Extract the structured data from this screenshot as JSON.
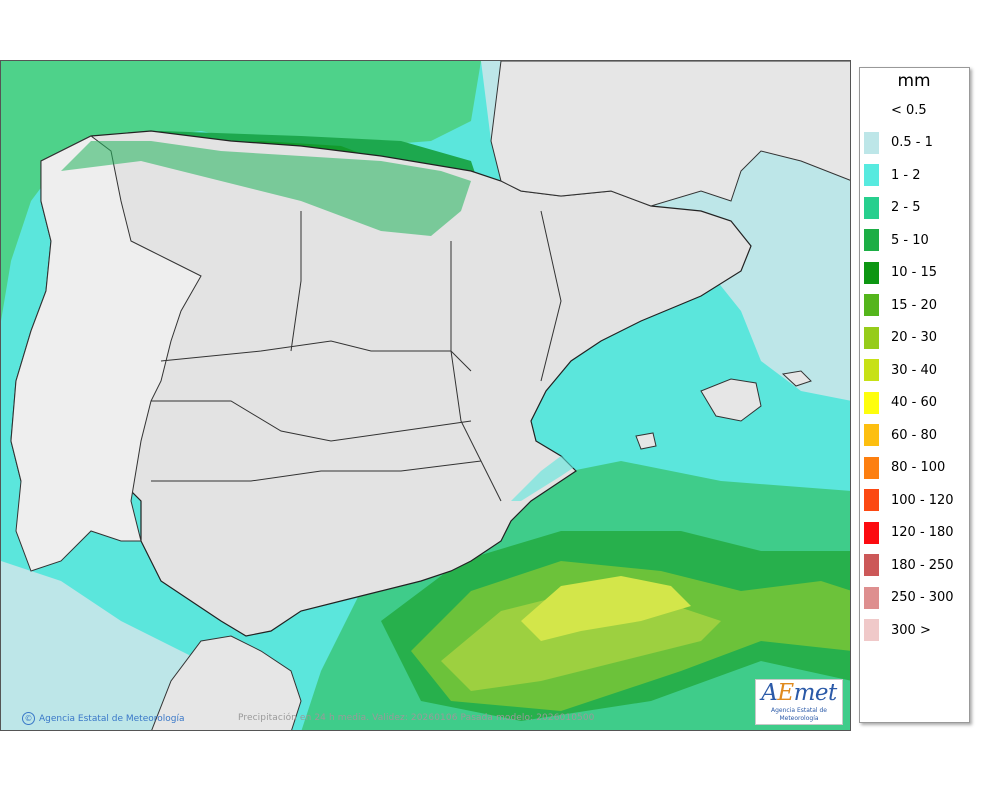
{
  "legend": {
    "unit": "mm",
    "items": [
      {
        "label": "< 0.5",
        "color": "#ffffff"
      },
      {
        "label": "0.5 - 1",
        "color": "#bde6e8"
      },
      {
        "label": "1 - 2",
        "color": "#57eadf"
      },
      {
        "label": "2 - 5",
        "color": "#27cf8e"
      },
      {
        "label": "5 - 10",
        "color": "#1cae45"
      },
      {
        "label": "10 - 15",
        "color": "#0d9612"
      },
      {
        "label": "15 - 20",
        "color": "#54b51c"
      },
      {
        "label": "20 - 30",
        "color": "#96cc1a"
      },
      {
        "label": "30 - 40",
        "color": "#c7e116"
      },
      {
        "label": "40 - 60",
        "color": "#fefe0d"
      },
      {
        "label": "60 - 80",
        "color": "#fdbf10"
      },
      {
        "label": "80 - 100",
        "color": "#fd7f10"
      },
      {
        "label": "100 - 120",
        "color": "#fc4812"
      },
      {
        "label": "120 - 180",
        "color": "#fc0b10"
      },
      {
        "label": "180 - 250",
        "color": "#cc5858"
      },
      {
        "label": "250 - 300",
        "color": "#de8f8f"
      },
      {
        "label": "300 >",
        "color": "#f0c9c9"
      }
    ]
  },
  "map": {
    "land_color": "#e6e6e6",
    "credit": "Agencia Estatal de Meteorología",
    "caption": "Precipitación en 24 h media. Validez: 20260106 Pasada modelo: 2026010500"
  },
  "logo": {
    "mark_a": "A",
    "mark_e": "E",
    "mark_rest": "met",
    "subtitle": "Agencia Estatal de Meteorología"
  }
}
